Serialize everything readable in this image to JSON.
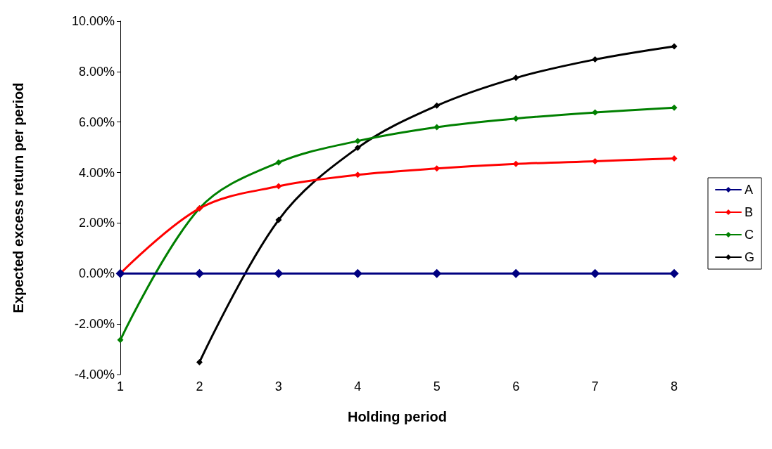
{
  "chart_data": {
    "type": "line",
    "xlabel": "Holding period",
    "ylabel": "Expected excess return per period",
    "x": [
      1,
      2,
      3,
      4,
      5,
      6,
      7,
      8
    ],
    "series": [
      {
        "name": "A",
        "color": "#000080",
        "values": [
          0,
          0,
          0,
          0,
          0,
          0,
          0,
          0
        ]
      },
      {
        "name": "B",
        "color": "#ff0000",
        "values": [
          0,
          2.58,
          3.46,
          3.91,
          4.16,
          4.34,
          4.45,
          4.56
        ]
      },
      {
        "name": "C",
        "color": "#008000",
        "values": [
          -2.63,
          2.58,
          4.4,
          5.25,
          5.8,
          6.14,
          6.38,
          6.57
        ]
      },
      {
        "name": "G",
        "color": "#000000",
        "values": [
          null,
          -3.51,
          2.12,
          4.98,
          6.65,
          7.75,
          8.48,
          9.0
        ]
      }
    ],
    "xlim": [
      1,
      8
    ],
    "xticks": [
      1,
      2,
      3,
      4,
      5,
      6,
      7,
      8
    ],
    "ylim": [
      -4,
      10
    ],
    "yticks": [
      {
        "value": -4,
        "label": "-4.00%"
      },
      {
        "value": -2,
        "label": "-2.00%"
      },
      {
        "value": 0,
        "label": "0.00%"
      },
      {
        "value": 2,
        "label": "2.00%"
      },
      {
        "value": 4,
        "label": "4.00%"
      },
      {
        "value": 6,
        "label": "6.00%"
      },
      {
        "value": 8,
        "label": "8.00%"
      },
      {
        "value": 10,
        "label": "10.00%"
      }
    ],
    "grid": false,
    "legend": "right",
    "marker": "diamond",
    "line_style": "solid"
  }
}
